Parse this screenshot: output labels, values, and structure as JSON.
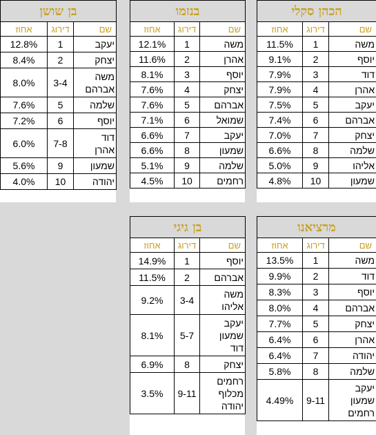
{
  "headers": {
    "name": "שם",
    "rank": "דירוג",
    "pct": "אחוז"
  },
  "tables": [
    {
      "title": "הכהן סקלי",
      "rows": [
        {
          "names": [
            "משה"
          ],
          "rank": "1",
          "pct": "11.5%"
        },
        {
          "names": [
            "יוסף"
          ],
          "rank": "2",
          "pct": "9.1%"
        },
        {
          "names": [
            "דוד"
          ],
          "rank": "3",
          "pct": "7.9%"
        },
        {
          "names": [
            "אהרן"
          ],
          "rank": "4",
          "pct": "7.9%"
        },
        {
          "names": [
            "יעקב"
          ],
          "rank": "5",
          "pct": "7.5%"
        },
        {
          "names": [
            "אברהם"
          ],
          "rank": "6",
          "pct": "7.4%"
        },
        {
          "names": [
            "יצחק"
          ],
          "rank": "7",
          "pct": "7.0%"
        },
        {
          "names": [
            "שלמה"
          ],
          "rank": "8",
          "pct": "6.6%"
        },
        {
          "names": [
            "אליהו"
          ],
          "rank": "9",
          "pct": "5.0%"
        },
        {
          "names": [
            "שמעון"
          ],
          "rank": "10",
          "pct": "4.8%"
        }
      ]
    },
    {
      "title": "בנזמו",
      "rows": [
        {
          "names": [
            "משה"
          ],
          "rank": "1",
          "pct": "12.1%"
        },
        {
          "names": [
            "אהרן"
          ],
          "rank": "2",
          "pct": "11.6%"
        },
        {
          "names": [
            "יוסף"
          ],
          "rank": "3",
          "pct": "8.1%"
        },
        {
          "names": [
            "יצחק"
          ],
          "rank": "4",
          "pct": "7.6%"
        },
        {
          "names": [
            "אברהם"
          ],
          "rank": "5",
          "pct": "7.6%"
        },
        {
          "names": [
            "שמואל"
          ],
          "rank": "6",
          "pct": "7.1%"
        },
        {
          "names": [
            "יעקב"
          ],
          "rank": "7",
          "pct": "6.6%"
        },
        {
          "names": [
            "שמעון"
          ],
          "rank": "8",
          "pct": "6.6%"
        },
        {
          "names": [
            "שלמה"
          ],
          "rank": "9",
          "pct": "5.1%"
        },
        {
          "names": [
            "רחמים"
          ],
          "rank": "10",
          "pct": "4.5%"
        }
      ]
    },
    {
      "title": "בן שושן",
      "rows": [
        {
          "names": [
            "יעקב"
          ],
          "rank": "1",
          "pct": "12.8%"
        },
        {
          "names": [
            "יצחק"
          ],
          "rank": "2",
          "pct": "8.4%"
        },
        {
          "names": [
            "משה",
            "אברהם"
          ],
          "rank": "3-4",
          "pct": "8.0%"
        },
        {
          "names": [
            "שלמה"
          ],
          "rank": "5",
          "pct": "7.6%"
        },
        {
          "names": [
            "יוסף"
          ],
          "rank": "6",
          "pct": "7.2%"
        },
        {
          "names": [
            "דוד",
            "אהרן"
          ],
          "rank": "7-8",
          "pct": "6.0%"
        },
        {
          "names": [
            "שמעון"
          ],
          "rank": "9",
          "pct": "5.6%"
        },
        {
          "names": [
            "יהודה"
          ],
          "rank": "10",
          "pct": "4.0%"
        }
      ]
    },
    {
      "title": "מרציאנו",
      "rows": [
        {
          "names": [
            "משה"
          ],
          "rank": "1",
          "pct": "13.5%"
        },
        {
          "names": [
            "דוד"
          ],
          "rank": "2",
          "pct": "9.9%"
        },
        {
          "names": [
            "יוסף"
          ],
          "rank": "3",
          "pct": "8.3%"
        },
        {
          "names": [
            "אברהם"
          ],
          "rank": "4",
          "pct": "8.0%"
        },
        {
          "names": [
            "יצחק"
          ],
          "rank": "5",
          "pct": "7.7%"
        },
        {
          "names": [
            "אהרן"
          ],
          "rank": "6",
          "pct": "6.4%"
        },
        {
          "names": [
            "יהודה"
          ],
          "rank": "7",
          "pct": "6.4%"
        },
        {
          "names": [
            "שלמה"
          ],
          "rank": "8",
          "pct": "5.8%"
        },
        {
          "names": [
            "יעקב",
            "שמעון",
            "רחמים"
          ],
          "rank": "9-11",
          "pct": "4.49%"
        }
      ]
    },
    {
      "title": "בן גיגי",
      "rows": [
        {
          "names": [
            "יוסף"
          ],
          "rank": "1",
          "pct": "14.9%"
        },
        {
          "names": [
            "אברהם"
          ],
          "rank": "2",
          "pct": "11.5%"
        },
        {
          "names": [
            "משה",
            "אליהו"
          ],
          "rank": "3-4",
          "pct": "9.2%"
        },
        {
          "names": [
            "יעקב",
            "שמעון",
            "דוד"
          ],
          "rank": "5-7",
          "pct": "8.1%"
        },
        {
          "names": [
            "יצחק"
          ],
          "rank": "8",
          "pct": "6.9%"
        },
        {
          "names": [
            "רחמים",
            "מכלוף",
            "יהודה"
          ],
          "rank": "9-11",
          "pct": "3.5%"
        }
      ]
    }
  ]
}
